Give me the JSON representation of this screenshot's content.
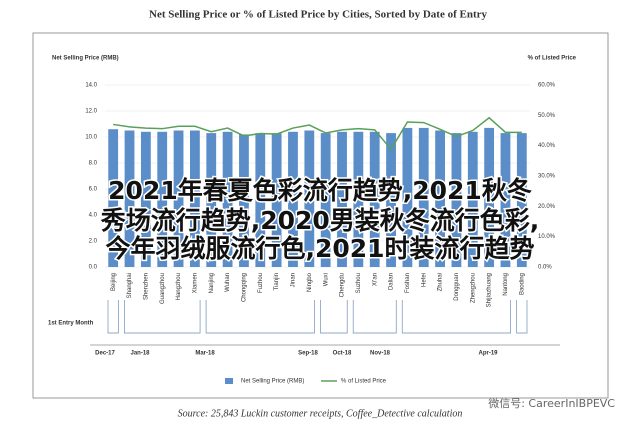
{
  "chart_data": {
    "type": "bar_line",
    "title": "Net Selling Price or % of Listed Price by Cities, Sorted by Date of Entry",
    "y_label": "Net Selling Price (RMB)",
    "y2_label": "% of Listed Price",
    "categories": [
      "Beijing",
      "Shanghai",
      "Shenzhen",
      "Guangzhou",
      "Hangzhou",
      "Xiamen",
      "Nanjing",
      "Wuhan",
      "Chongqing",
      "Fuzhou",
      "Tianjin",
      "Jinan",
      "Ningbo",
      "Wuxi",
      "Chengdu",
      "Suzhou",
      "Xi'an",
      "Dalian",
      "Foshan",
      "Hefei",
      "Zhuhai",
      "Dongguan",
      "Zhengzhou",
      "Shijiazhuang",
      "Nantong",
      "Baoding"
    ],
    "series": [
      {
        "name": "Net Selling Price (RMB)",
        "color": "#5b8ec9",
        "type": "bar",
        "values": [
          10.6,
          10.5,
          10.4,
          10.4,
          10.5,
          10.5,
          10.3,
          10.4,
          10.2,
          10.3,
          10.3,
          10.4,
          10.5,
          10.3,
          10.4,
          10.4,
          10.4,
          10.3,
          10.7,
          10.7,
          10.5,
          10.3,
          10.4,
          10.7,
          10.3,
          10.3
        ]
      },
      {
        "name": "% of Listed Price",
        "color": "#5aa05a",
        "type": "line",
        "axis": "y2",
        "values": [
          47.0,
          46.2,
          45.8,
          45.6,
          46.4,
          46.4,
          44.6,
          45.8,
          43.2,
          44.0,
          43.8,
          45.8,
          46.8,
          44.2,
          45.2,
          45.6,
          45.2,
          38.8,
          47.8,
          47.6,
          45.4,
          43.0,
          45.0,
          49.2,
          44.4,
          44.4
        ]
      }
    ],
    "ylim": [
      0,
      14
    ],
    "yticks": [
      {
        "value": 0,
        "label": "0.0"
      },
      {
        "value": 2,
        "label": "2.0"
      },
      {
        "value": 4,
        "label": "4.0"
      },
      {
        "value": 6,
        "label": "6.0"
      },
      {
        "value": 8,
        "label": "8.0"
      },
      {
        "value": 10,
        "label": "10.0"
      },
      {
        "value": 12,
        "label": "12.0"
      },
      {
        "value": 14,
        "label": "14.0"
      }
    ],
    "y2lim": [
      0,
      60
    ],
    "y2ticks": [
      {
        "value": 0,
        "label": "0.0%"
      },
      {
        "value": 10,
        "label": "10.0%"
      },
      {
        "value": 20,
        "label": "20.0%"
      },
      {
        "value": 30,
        "label": "30.0%"
      },
      {
        "value": 40,
        "label": "40.0%"
      },
      {
        "value": 50,
        "label": "50.0%"
      },
      {
        "value": 60,
        "label": "60.0%"
      }
    ],
    "entry_title": "1st Entry Month",
    "entry_months": [
      "Dec-17",
      "Jan-18",
      "Mar-18",
      "Sep-18",
      "Oct-18",
      "Nov-18",
      "Apr-19"
    ],
    "source": "Source: 25,843 Luckin customer receipts, Coffee_Detective calculation"
  },
  "overlay": {
    "lines": [
      "2021年春夏色彩流行趋势,2021秋冬",
      "秀场流行趋势,2020男装秋冬流行色彩,",
      "今年羽绒服流行色,2021时装流行趋势"
    ],
    "watermark": "微信号: CareerInIBPEVC"
  }
}
